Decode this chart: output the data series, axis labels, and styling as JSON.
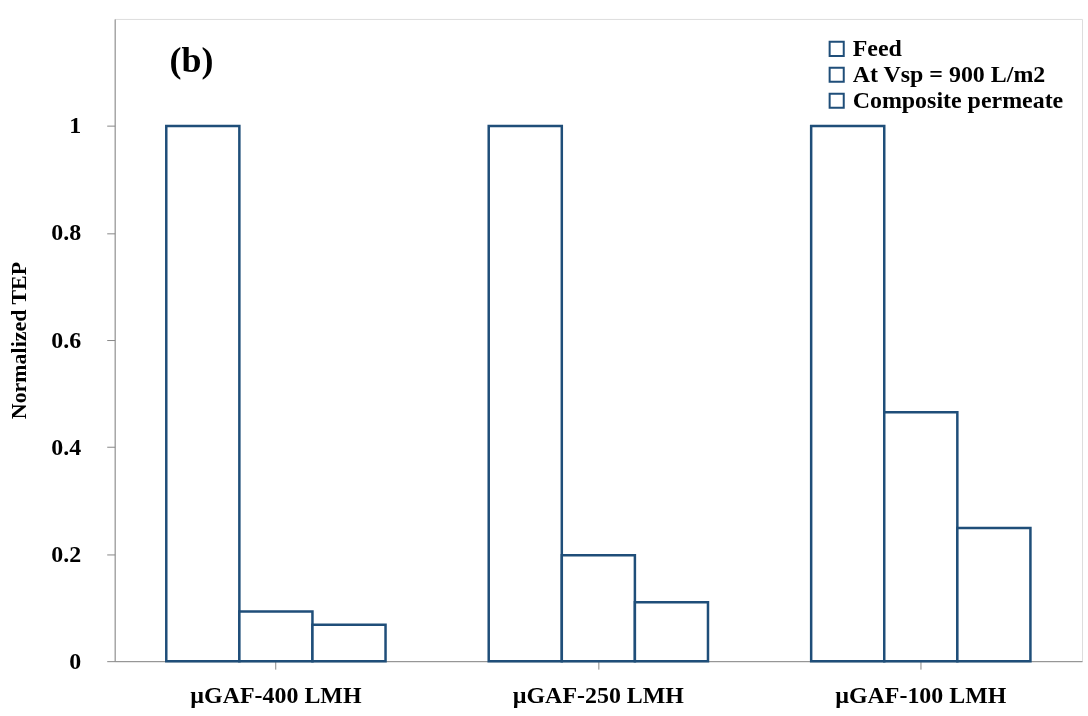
{
  "chart_data": {
    "type": "bar",
    "ylabel": "Normalized TEP",
    "annotations": [
      "(b)"
    ],
    "categories": [
      "µGAF-400 LMH",
      "µGAF-250 LMH",
      "µGAF-100 LMH"
    ],
    "series": [
      {
        "name": "Feed",
        "color": "#1f4e79",
        "values": [
          1,
          1,
          1
        ]
      },
      {
        "name": "At Vsp = 900 L/m2",
        "color": "#1f4e79",
        "values": [
          0.093,
          0.198,
          0.465
        ]
      },
      {
        "name": "Composite permeate",
        "color": "#1f4e79",
        "values": [
          0.068,
          0.11,
          0.249
        ]
      }
    ],
    "ylim": [
      0,
      1.2
    ],
    "yticks": [
      0,
      0.2,
      0.4,
      0.6,
      0.8,
      1
    ],
    "grid": false,
    "legend": "top right"
  }
}
